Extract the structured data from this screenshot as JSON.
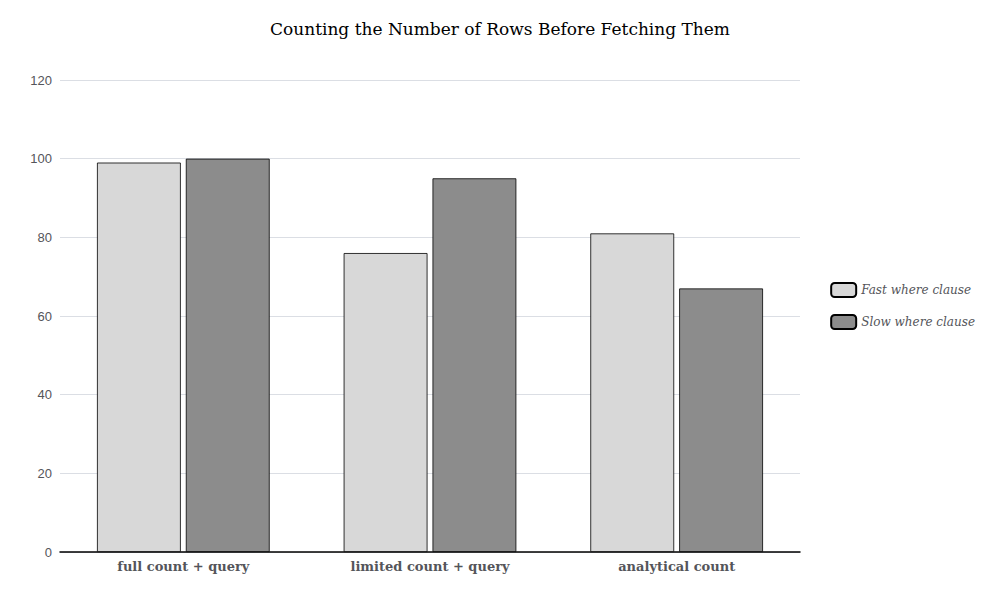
{
  "chart_data": {
    "type": "bar",
    "title": "Counting the Number of Rows Before Fetching Them",
    "categories": [
      "full count + query",
      "limited count + query",
      "analytical count"
    ],
    "series": [
      {
        "name": "Fast where clause",
        "color": "#d8d8d8",
        "values": [
          99,
          76,
          81
        ]
      },
      {
        "name": "Slow where clause",
        "color": "#8c8c8c",
        "values": [
          100,
          95,
          67
        ]
      }
    ],
    "ylim": [
      0,
      120
    ],
    "yticks": [
      0,
      20,
      40,
      60,
      80,
      100,
      120
    ],
    "grid": true,
    "legend": "right"
  }
}
